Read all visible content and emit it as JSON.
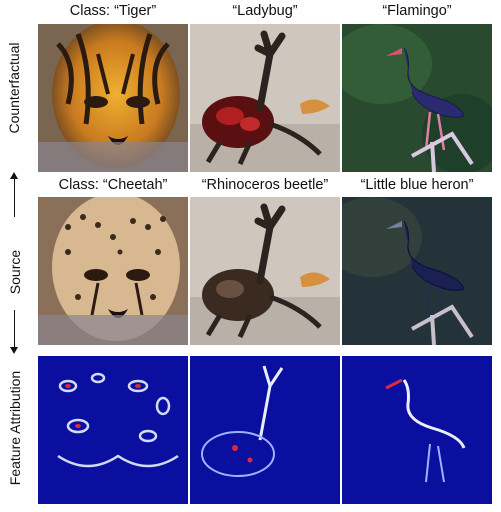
{
  "colors": {
    "attribution_background": "#0a0fa0",
    "attribution_highlight": "#e8f0ff",
    "attribution_peak": "#e0283c"
  },
  "rows": {
    "counterfactual": {
      "side_label": "Counterfactual",
      "captions": [
        "Class: “Tiger”",
        "“Ladybug”",
        "“Flamingo”"
      ],
      "images": [
        "tiger",
        "ladybug",
        "flamingo"
      ]
    },
    "source": {
      "side_label": "Source",
      "captions": [
        "Class: “Cheetah”",
        "“Rhinoceros beetle”",
        "“Little blue heron”"
      ],
      "images": [
        "cheetah",
        "rhinoceros-beetle",
        "little-blue-heron"
      ]
    },
    "feature_attribution": {
      "side_label": "Feature Attribution",
      "images": [
        "cheetah-attribution-map",
        "beetle-attribution-map",
        "heron-attribution-map"
      ]
    }
  }
}
